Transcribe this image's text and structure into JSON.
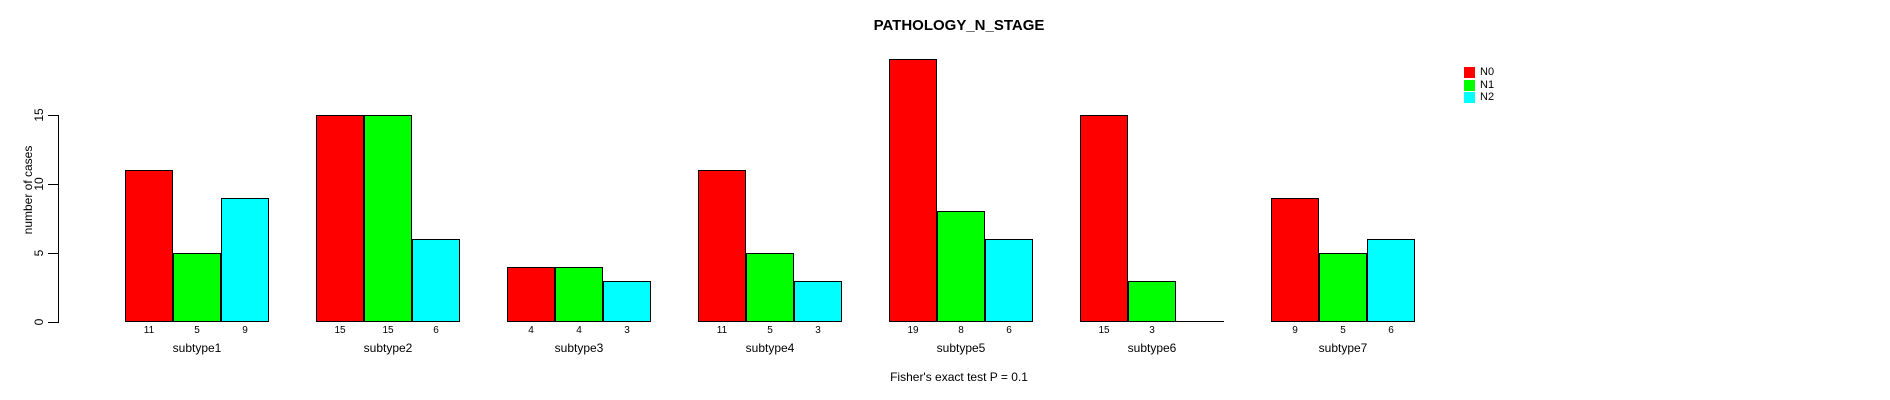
{
  "chart_data": {
    "type": "bar",
    "title": "PATHOLOGY_N_STAGE",
    "ylabel": "number of cases",
    "xlabel": "",
    "annotation": "Fisher's exact test P = 0.1",
    "categories": [
      "subtype1",
      "subtype2",
      "subtype3",
      "subtype4",
      "subtype5",
      "subtype6",
      "subtype7"
    ],
    "series": [
      {
        "name": "N0",
        "color": "#FF0000",
        "values": [
          11,
          15,
          4,
          11,
          19,
          15,
          9
        ]
      },
      {
        "name": "N1",
        "color": "#00FF00",
        "values": [
          5,
          15,
          4,
          5,
          8,
          3,
          5
        ]
      },
      {
        "name": "N2",
        "color": "#00FFFF",
        "values": [
          9,
          6,
          3,
          3,
          6,
          0,
          6
        ]
      }
    ],
    "yticks": [
      0,
      5,
      10,
      15
    ],
    "ylim": [
      0,
      19
    ],
    "grid": false,
    "legend_position": "top-right",
    "bar_value_labels_visible": true,
    "zero_bars_unlabeled": true
  }
}
